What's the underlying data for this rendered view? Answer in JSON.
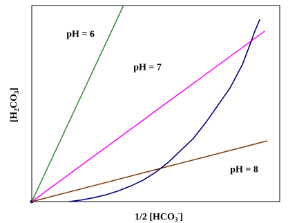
{
  "chart_data": {
    "type": "line",
    "title": "",
    "xlabel": {
      "prefix": "1/2 [HCO",
      "sub": "3",
      "sup": "-",
      "suffix": "]"
    },
    "ylabel": {
      "prefix": "[H",
      "sub": "2",
      "suffix": "CO",
      "sub2": "3",
      "end": "]"
    },
    "xlim": [
      0,
      100
    ],
    "ylim": [
      0,
      100
    ],
    "grid": false,
    "series": [
      {
        "name": "pH = 6",
        "color": "#2e8b2e",
        "x": [
          0,
          37
        ],
        "y": [
          0,
          100
        ]
      },
      {
        "name": "pH = 7",
        "color": "#ff00ff",
        "x": [
          0,
          94
        ],
        "y": [
          0,
          87
        ]
      },
      {
        "name": "pH = 8",
        "color": "#7a3a0a",
        "x": [
          0,
          95
        ],
        "y": [
          0,
          31
        ]
      },
      {
        "name": "",
        "color": "#000080",
        "x": [
          15,
          20,
          25,
          30,
          35,
          40,
          45,
          50,
          55,
          60,
          65,
          70,
          75,
          80,
          85,
          88,
          90,
          92
        ],
        "y": [
          0,
          0.8,
          2,
          3.5,
          5.5,
          8,
          11,
          15,
          20,
          26,
          32,
          40,
          49,
          58,
          70,
          80,
          87,
          93
        ]
      }
    ],
    "annotations": [
      {
        "text": "pH = 6",
        "x": 14,
        "y": 84
      },
      {
        "text": "pH = 7",
        "x": 41,
        "y": 67
      },
      {
        "text": "pH = 8",
        "x": 80,
        "y": 15
      }
    ]
  }
}
